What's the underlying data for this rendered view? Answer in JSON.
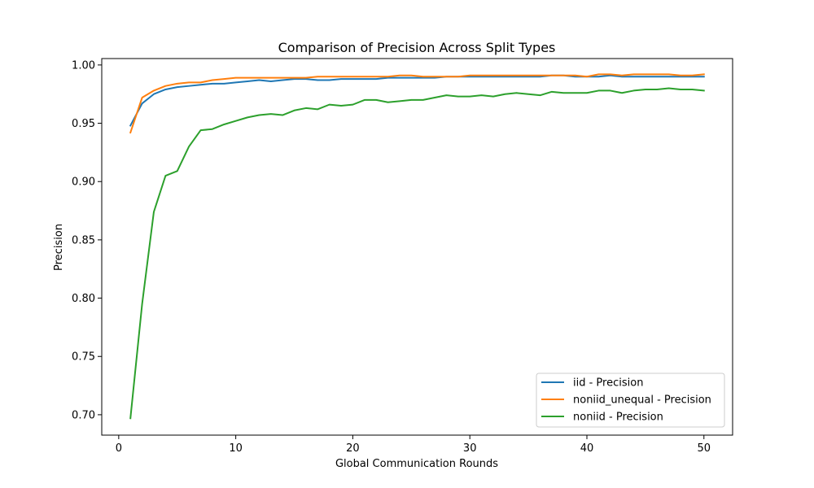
{
  "chart_data": {
    "type": "line",
    "title": "Comparison of Precision Across Split Types",
    "xlabel": "Global Communication Rounds",
    "ylabel": "Precision",
    "xlim": [
      -1.45,
      52.45
    ],
    "ylim": [
      0.6825,
      1.0055
    ],
    "xticks": [
      0,
      10,
      20,
      30,
      40,
      50
    ],
    "yticks": [
      0.7,
      0.75,
      0.8,
      0.85,
      0.9,
      0.95,
      1.0
    ],
    "xtick_labels": [
      "0",
      "10",
      "20",
      "30",
      "40",
      "50"
    ],
    "ytick_labels": [
      "0.70",
      "0.75",
      "0.80",
      "0.85",
      "0.90",
      "0.95",
      "1.00"
    ],
    "grid": false,
    "legend_position": "lower-right",
    "x": [
      1,
      2,
      3,
      4,
      5,
      6,
      7,
      8,
      9,
      10,
      11,
      12,
      13,
      14,
      15,
      16,
      17,
      18,
      19,
      20,
      21,
      22,
      23,
      24,
      25,
      26,
      27,
      28,
      29,
      30,
      31,
      32,
      33,
      34,
      35,
      36,
      37,
      38,
      39,
      40,
      41,
      42,
      43,
      44,
      45,
      46,
      47,
      48,
      49,
      50
    ],
    "series": [
      {
        "name": "iid - Precision",
        "color": "#1f77b4",
        "values": [
          0.948,
          0.967,
          0.975,
          0.979,
          0.981,
          0.982,
          0.983,
          0.984,
          0.984,
          0.985,
          0.986,
          0.987,
          0.986,
          0.987,
          0.988,
          0.988,
          0.987,
          0.987,
          0.988,
          0.988,
          0.988,
          0.988,
          0.989,
          0.989,
          0.989,
          0.989,
          0.989,
          0.99,
          0.99,
          0.99,
          0.99,
          0.99,
          0.99,
          0.99,
          0.99,
          0.99,
          0.991,
          0.991,
          0.99,
          0.99,
          0.99,
          0.991,
          0.99,
          0.99,
          0.99,
          0.99,
          0.99,
          0.99,
          0.99,
          0.99
        ]
      },
      {
        "name": "noniid_unequal - Precision",
        "color": "#ff7f0e",
        "values": [
          0.942,
          0.972,
          0.978,
          0.982,
          0.984,
          0.985,
          0.985,
          0.987,
          0.988,
          0.989,
          0.989,
          0.989,
          0.989,
          0.989,
          0.989,
          0.989,
          0.99,
          0.99,
          0.99,
          0.99,
          0.99,
          0.99,
          0.99,
          0.991,
          0.991,
          0.99,
          0.99,
          0.99,
          0.99,
          0.991,
          0.991,
          0.991,
          0.991,
          0.991,
          0.991,
          0.991,
          0.991,
          0.991,
          0.991,
          0.99,
          0.992,
          0.992,
          0.991,
          0.992,
          0.992,
          0.992,
          0.992,
          0.991,
          0.991,
          0.992
        ]
      },
      {
        "name": "noniid - Precision",
        "color": "#2ca02c",
        "values": [
          0.697,
          0.795,
          0.874,
          0.905,
          0.909,
          0.93,
          0.944,
          0.945,
          0.949,
          0.952,
          0.955,
          0.957,
          0.958,
          0.957,
          0.961,
          0.963,
          0.962,
          0.966,
          0.965,
          0.966,
          0.97,
          0.97,
          0.968,
          0.969,
          0.97,
          0.97,
          0.972,
          0.974,
          0.973,
          0.973,
          0.974,
          0.973,
          0.975,
          0.976,
          0.975,
          0.974,
          0.977,
          0.976,
          0.976,
          0.976,
          0.978,
          0.978,
          0.976,
          0.978,
          0.979,
          0.979,
          0.98,
          0.979,
          0.979,
          0.978
        ]
      }
    ]
  }
}
